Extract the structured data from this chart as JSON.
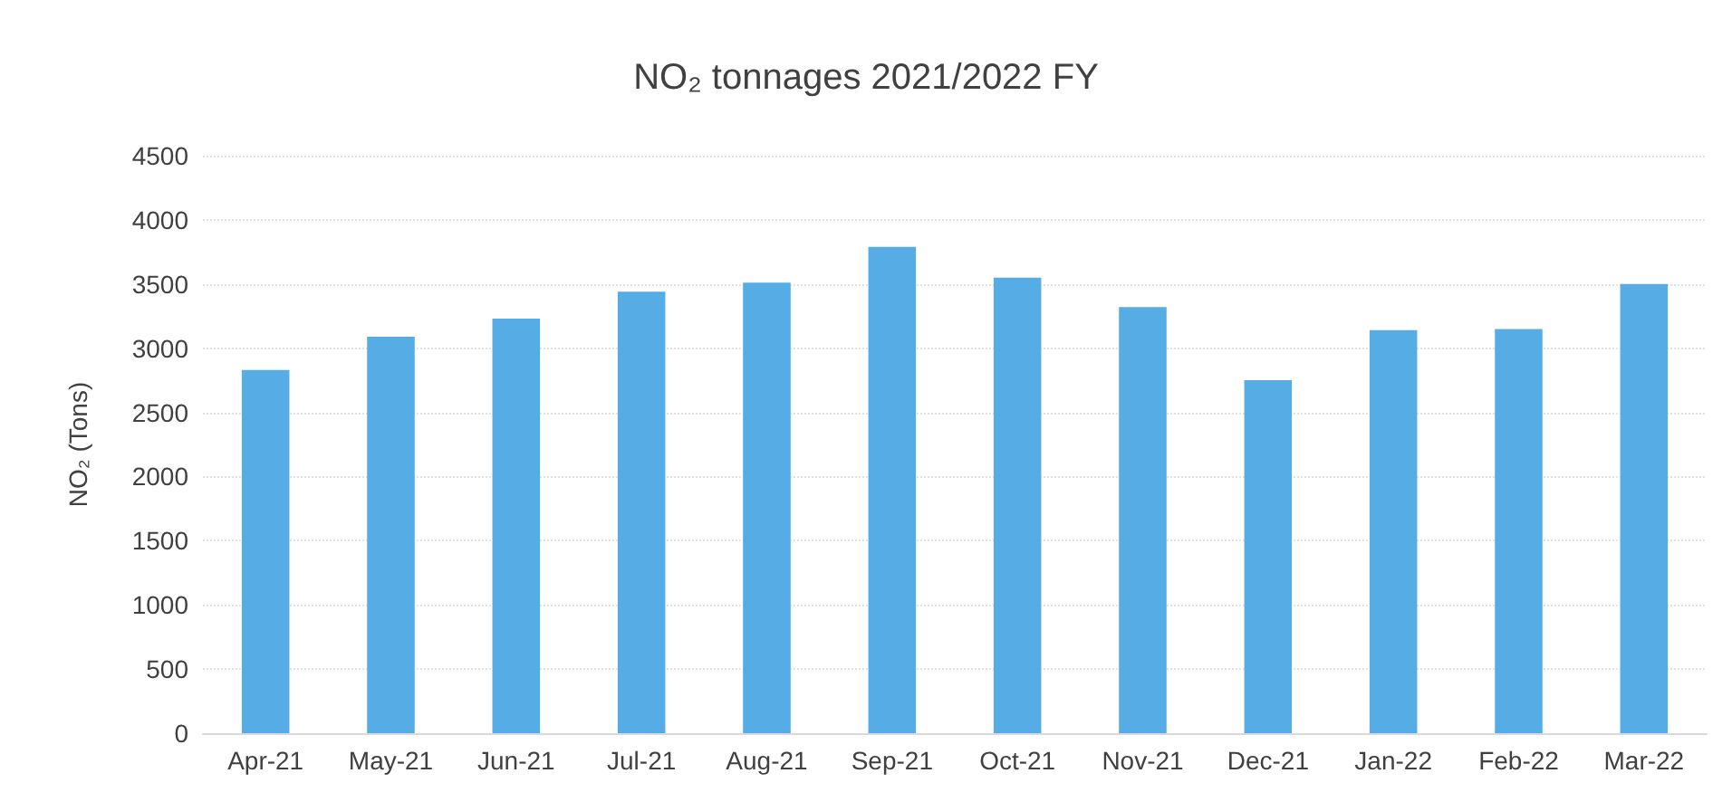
{
  "chart_data": {
    "type": "bar",
    "title": "NO₂ tonnages 2021/2022 FY",
    "ylabel": "NO₂ (Tons)",
    "categories": [
      "Apr-21",
      "May-21",
      "Jun-21",
      "Jul-21",
      "Aug-21",
      "Sep-21",
      "Oct-21",
      "Nov-21",
      "Dec-21",
      "Jan-22",
      "Feb-22",
      "Mar-22"
    ],
    "values": [
      2830,
      3090,
      3230,
      3440,
      3510,
      3790,
      3550,
      3320,
      2750,
      3140,
      3150,
      3500
    ],
    "color": "#56ade6",
    "ylim": [
      0,
      4500
    ],
    "yticks": [
      0,
      500,
      1000,
      1500,
      2000,
      2500,
      3000,
      3500,
      4000,
      4500
    ],
    "grid": "y"
  }
}
